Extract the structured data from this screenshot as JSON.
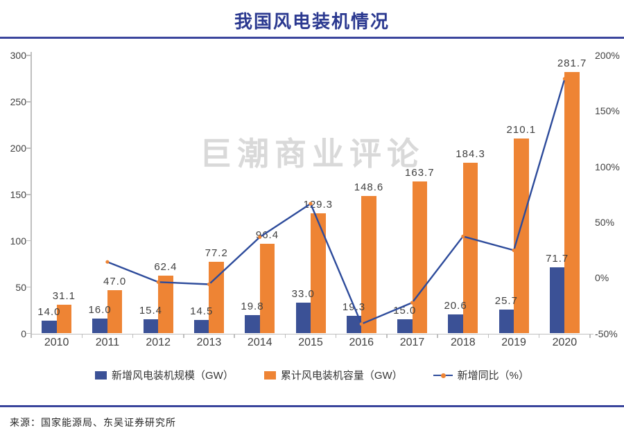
{
  "header": {
    "title": "我国风电装机情况"
  },
  "watermark": "巨潮商业评论",
  "footer": {
    "source": "来源：国家能源局、东吴证券研究所"
  },
  "theme": {
    "title_color": "#2b3990",
    "divider_color": "#3a459c",
    "bar_new_color": "#3b5196",
    "bar_cum_color": "#ee8434",
    "line_color": "#2d4b9b",
    "marker_color": "#ee8434",
    "axis_text_color": "#404040",
    "axis_line_color": "#bfbfbf",
    "label_color": "#3f3f3f",
    "watermark_color": "#d9d9d9",
    "legend_text_color": "#333333"
  },
  "legend": [
    {
      "label": "新增风电装机规模（GW）",
      "marker": "square",
      "color": "#3b5196"
    },
    {
      "label": "累计风电装机容量（GW）",
      "marker": "square",
      "color": "#ee8434"
    },
    {
      "label": "新增同比（%）",
      "marker": "line-dot",
      "color": "#2d4b9b",
      "dot_color": "#ee8434"
    }
  ],
  "chart_data": {
    "type": "bar",
    "title": "我国风电装机情况",
    "categories": [
      "2010",
      "2011",
      "2012",
      "2013",
      "2014",
      "2015",
      "2016",
      "2017",
      "2018",
      "2019",
      "2020"
    ],
    "series": [
      {
        "name": "新增风电装机规模（GW）",
        "type": "bar",
        "axis": "left",
        "color": "#3b5196",
        "values": [
          14.0,
          16.0,
          15.4,
          14.5,
          19.8,
          33.0,
          19.3,
          15.0,
          20.6,
          25.7,
          71.7
        ],
        "labels": [
          "14.0",
          "16.0",
          "15.4",
          "14.5",
          "19.8",
          "33.0",
          "19.3",
          "15.0",
          "20.6",
          "25.7",
          "71.7"
        ]
      },
      {
        "name": "累计风电装机容量（GW）",
        "type": "bar",
        "axis": "left",
        "color": "#ee8434",
        "values": [
          31.1,
          47.0,
          62.4,
          77.2,
          96.4,
          129.3,
          148.6,
          163.7,
          184.3,
          210.1,
          281.7
        ],
        "labels": [
          "31.1",
          "47.0",
          "62.4",
          "77.2",
          "96.4",
          "129.3",
          "148.6",
          "163.7",
          "184.3",
          "210.1",
          "281.7"
        ]
      },
      {
        "name": "新增同比（%）",
        "type": "line",
        "axis": "right",
        "color": "#2d4b9b",
        "values": [
          null,
          14.3,
          -3.8,
          -5.8,
          36.6,
          66.7,
          -41.5,
          -22.3,
          37.3,
          24.8,
          179.0
        ]
      }
    ],
    "left_axis": {
      "min": 0,
      "max": 300,
      "step": 50,
      "ticks": [
        "0",
        "50",
        "100",
        "150",
        "200",
        "250",
        "300"
      ]
    },
    "right_axis": {
      "min": -50,
      "max": 200,
      "step": 50,
      "ticks": [
        "-50%",
        "0%",
        "50%",
        "100%",
        "150%",
        "200%"
      ],
      "unit": "%"
    },
    "grid": false,
    "legend_position": "bottom"
  }
}
